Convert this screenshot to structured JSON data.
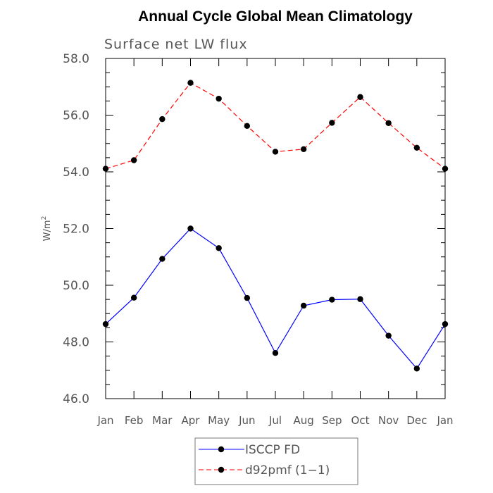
{
  "chart_data": {
    "type": "line",
    "title": "Annual Cycle Global Mean Climatology",
    "subtitle": "Surface net LW flux",
    "ylabel": "W/m",
    "ylabel_superscript": "2",
    "xlabel": "",
    "ylim": [
      46.0,
      58.0
    ],
    "yticks": [
      "46.0",
      "48.0",
      "50.0",
      "52.0",
      "54.0",
      "56.0",
      "58.0"
    ],
    "ytick_values": [
      46,
      48,
      50,
      52,
      54,
      56,
      58
    ],
    "categories": [
      "Jan",
      "Feb",
      "Mar",
      "Apr",
      "May",
      "Jun",
      "Jul",
      "Aug",
      "Sep",
      "Oct",
      "Nov",
      "Dec",
      "Jan"
    ],
    "series": [
      {
        "name": "ISCCP FD",
        "color": "#0000ff",
        "dash": "solid",
        "values": [
          48.63,
          49.56,
          50.93,
          52.0,
          51.31,
          49.55,
          47.61,
          49.28,
          49.49,
          49.51,
          48.22,
          47.06,
          48.63
        ]
      },
      {
        "name": "d92pmf (1-1)",
        "color": "#ff0000",
        "dash": "dashed",
        "values": [
          54.11,
          54.41,
          55.86,
          57.14,
          56.58,
          55.62,
          54.71,
          54.8,
          55.73,
          56.64,
          55.72,
          54.85,
          54.11
        ]
      }
    ],
    "legend_labels": [
      "ISCCP FD",
      "d92pmf (1−1)"
    ],
    "legend_position": "bottom-center"
  }
}
